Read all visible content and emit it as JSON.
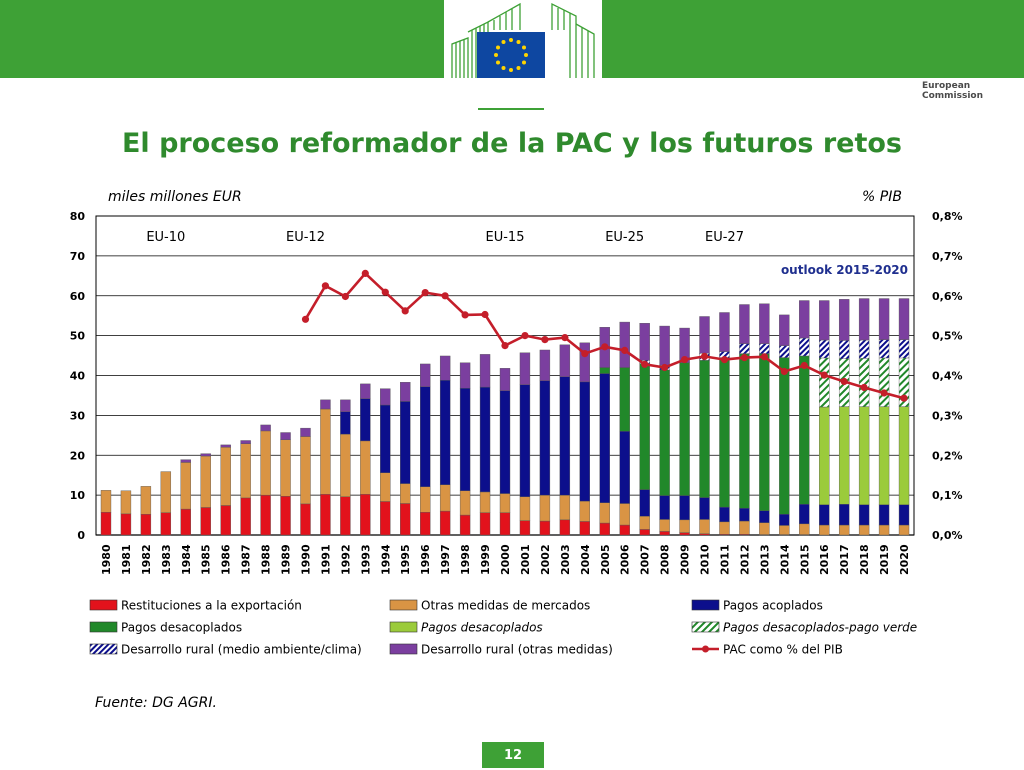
{
  "header": {
    "logo_line1": "European",
    "logo_line2": "Commission",
    "slide_title": "El proceso reformador de la PAC y los futuros retos"
  },
  "colors": {
    "band": "#3ea136",
    "title": "#2f8a2d",
    "red": "#e2121c",
    "orange": "#d99444",
    "navy": "#0c0f8c",
    "dark_green": "#21882a",
    "light_green": "#9bcb3b",
    "purple": "#7b3f9f",
    "line": "#c41e2a"
  },
  "chart_data": {
    "type": "bar",
    "stacked": true,
    "left_axis_label": "miles millones EUR",
    "right_axis_label": "% PIB",
    "ylim": [
      0,
      80
    ],
    "yticks": [
      "0",
      "10",
      "20",
      "30",
      "40",
      "50",
      "60",
      "70",
      "80"
    ],
    "y2lim": [
      0,
      0.8
    ],
    "y2ticks": [
      "0,0%",
      "0,1%",
      "0,2%",
      "0,3%",
      "0,4%",
      "0,5%",
      "0,6%",
      "0,7%",
      "0,8%"
    ],
    "grid": true,
    "categories": [
      "1980",
      "1981",
      "1982",
      "1983",
      "1984",
      "1985",
      "1986",
      "1987",
      "1988",
      "1989",
      "1990",
      "1991",
      "1992",
      "1993",
      "1994",
      "1995",
      "1996",
      "1997",
      "1998",
      "1999",
      "2000",
      "2001",
      "2002",
      "2003",
      "2004",
      "2005",
      "2006",
      "2007",
      "2008",
      "2009",
      "2010",
      "2011",
      "2012",
      "2013",
      "2014",
      "2015",
      "2016",
      "2017",
      "2018",
      "2019",
      "2020"
    ],
    "enlargement_labels": [
      {
        "text": "EU-10",
        "at": "1983"
      },
      {
        "text": "EU-12",
        "at": "1990"
      },
      {
        "text": "EU-15",
        "at": "2000"
      },
      {
        "text": "EU-25",
        "at": "2006"
      },
      {
        "text": "EU-27",
        "at": "2011"
      }
    ],
    "outlook_label": "outlook 2015-2020",
    "series": [
      {
        "name": "Restituciones a la exportación",
        "color": "#e2121c",
        "pattern": "solid",
        "values": [
          5.7,
          5.3,
          5.2,
          5.6,
          6.5,
          6.9,
          7.4,
          9.3,
          10.0,
          9.7,
          7.8,
          10.2,
          9.6,
          10.2,
          8.4,
          7.9,
          5.7,
          6.0,
          5.0,
          5.6,
          5.6,
          3.6,
          3.5,
          3.8,
          3.4,
          3.0,
          2.5,
          1.4,
          0.9,
          0.6,
          0.3,
          0.2,
          0.2,
          0.1,
          0.1,
          0.1,
          0.0,
          0.0,
          0.0,
          0.0,
          0.0
        ]
      },
      {
        "name": "Otras medidas de mercados",
        "color": "#d99444",
        "pattern": "solid",
        "values": [
          5.5,
          5.8,
          7.0,
          10.3,
          11.7,
          12.9,
          14.6,
          13.6,
          16.1,
          14.2,
          16.9,
          21.4,
          15.7,
          13.4,
          7.2,
          5.0,
          6.4,
          6.6,
          6.1,
          5.2,
          4.8,
          6.0,
          6.5,
          6.2,
          5.1,
          5.1,
          5.4,
          3.3,
          3.0,
          3.2,
          3.6,
          3.1,
          3.3,
          3.0,
          2.3,
          2.7,
          2.5,
          2.5,
          2.5,
          2.5,
          2.5
        ]
      },
      {
        "name": "Pagos acoplados",
        "color": "#0c0f8c",
        "pattern": "solid",
        "values": [
          0,
          0,
          0,
          0,
          0,
          0,
          0,
          0,
          0,
          0,
          0,
          0,
          5.6,
          10.6,
          17.0,
          20.6,
          25.1,
          26.2,
          25.7,
          26.3,
          25.8,
          28.1,
          28.7,
          29.7,
          29.9,
          32.4,
          18.1,
          6.7,
          6.0,
          6.1,
          5.5,
          3.7,
          3.2,
          3.0,
          2.8,
          4.9,
          5.1,
          5.2,
          5.1,
          5.1,
          5.1
        ]
      },
      {
        "name": "Pagos desacoplados",
        "color": "#21882a",
        "pattern": "solid",
        "values": [
          0,
          0,
          0,
          0,
          0,
          0,
          0,
          0,
          0,
          0,
          0,
          0,
          0,
          0,
          0,
          0,
          0,
          0,
          0,
          0,
          0,
          0,
          0,
          0,
          0,
          1.5,
          16.0,
          31.6,
          31.5,
          33.3,
          34.4,
          37.5,
          38.8,
          39.4,
          39.3,
          37.2,
          0,
          0,
          0,
          0,
          0
        ]
      },
      {
        "name": "Pagos desacoplados",
        "color": "#9bcb3b",
        "pattern": "solid",
        "italic": true,
        "values": [
          0,
          0,
          0,
          0,
          0,
          0,
          0,
          0,
          0,
          0,
          0,
          0,
          0,
          0,
          0,
          0,
          0,
          0,
          0,
          0,
          0,
          0,
          0,
          0,
          0,
          0,
          0,
          0,
          0,
          0,
          0,
          0,
          0,
          0,
          0,
          0,
          24.5,
          24.5,
          24.6,
          24.6,
          24.6
        ]
      },
      {
        "name": "Pagos desacoplados-pago verde",
        "color": "#21882a",
        "pattern": "hatch-green",
        "italic": true,
        "values": [
          0,
          0,
          0,
          0,
          0,
          0,
          0,
          0,
          0,
          0,
          0,
          0,
          0,
          0,
          0,
          0,
          0,
          0,
          0,
          0,
          0,
          0,
          0,
          0,
          0,
          0,
          0,
          0,
          0,
          0,
          0,
          0,
          0,
          0,
          0,
          0,
          12.3,
          12.0,
          12.1,
          12.2,
          12.2
        ]
      },
      {
        "name": "Desarrollo rural (medio ambiente/clima)",
        "color": "#0c0f8c",
        "pattern": "hatch-blue",
        "values": [
          0,
          0,
          0,
          0,
          0,
          0,
          0,
          0,
          0,
          0,
          0,
          0,
          0,
          0,
          0,
          0,
          0,
          0,
          0,
          0,
          0,
          0,
          0,
          0,
          0,
          0,
          0,
          0.8,
          1.2,
          0,
          1.8,
          1.5,
          2.5,
          2.5,
          3.0,
          4.5,
          4.5,
          4.6,
          4.6,
          4.6,
          4.6
        ]
      },
      {
        "name": "Desarrollo rural (otras medidas)",
        "color": "#7b3f9f",
        "pattern": "solid",
        "values": [
          0,
          0,
          0,
          0,
          0.7,
          0.6,
          0.6,
          0.8,
          1.5,
          1.8,
          2.1,
          2.3,
          3.0,
          3.7,
          4.1,
          4.8,
          5.7,
          6.1,
          6.4,
          8.2,
          5.6,
          8.0,
          7.7,
          8.0,
          9.8,
          10.1,
          11.4,
          9.3,
          9.8,
          8.7,
          9.2,
          9.8,
          9.8,
          10.0,
          7.7,
          9.4,
          9.9,
          10.3,
          10.4,
          10.3,
          10.3
        ]
      }
    ],
    "line_series": {
      "name": "PAC como % del PIB",
      "color": "#c41e2a",
      "start": "1990",
      "values": [
        0.541,
        0.625,
        0.598,
        0.656,
        0.609,
        0.562,
        0.608,
        0.6,
        0.552,
        0.553,
        0.475,
        0.5,
        0.49,
        0.495,
        0.455,
        0.472,
        0.463,
        0.428,
        0.42,
        0.44,
        0.448,
        0.44,
        0.445,
        0.447,
        0.41,
        0.425,
        0.401,
        0.385,
        0.37,
        0.356,
        0.343
      ]
    },
    "legend": [
      {
        "label": "Restituciones a la exportación",
        "swatch": "red"
      },
      {
        "label": "Otras medidas de mercados",
        "swatch": "orange"
      },
      {
        "label": "Pagos acoplados",
        "swatch": "navy"
      },
      {
        "label": "Pagos desacoplados",
        "swatch": "dark_green"
      },
      {
        "label": "Pagos desacoplados",
        "swatch": "light_green",
        "italic": true
      },
      {
        "label": "Pagos desacoplados-pago verde",
        "swatch": "hatch_green",
        "italic": true
      },
      {
        "label": "Desarrollo rural (medio ambiente/clima)",
        "swatch": "hatch_blue"
      },
      {
        "label": "Desarrollo rural (otras medidas)",
        "swatch": "purple"
      },
      {
        "label": "PAC como % del PIB",
        "swatch": "line"
      }
    ],
    "legend_placement": "bottom"
  },
  "footer": {
    "source": "Fuente: DG AGRI.",
    "page_number": "12"
  }
}
